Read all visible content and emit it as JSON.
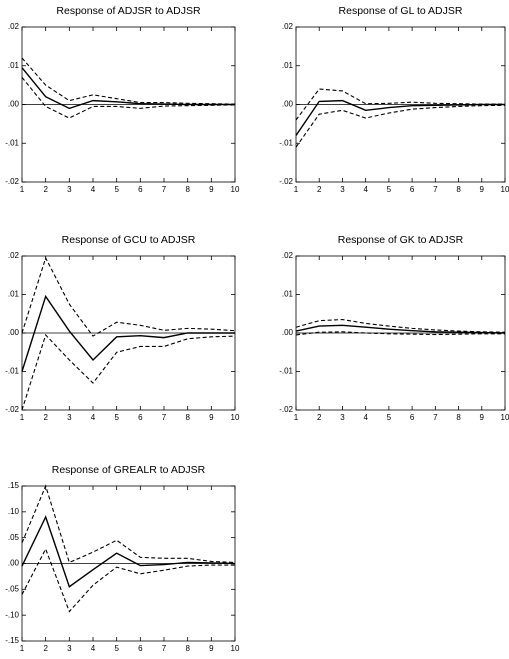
{
  "chart_data": [
    {
      "type": "line",
      "title": "Response of ADJSR to ADJSR",
      "x": [
        1,
        2,
        3,
        4,
        5,
        6,
        7,
        8,
        9,
        10
      ],
      "xlim": [
        1,
        10
      ],
      "xticks": [
        1,
        2,
        3,
        4,
        5,
        6,
        7,
        8,
        9,
        10
      ],
      "ylim": [
        -0.02,
        0.02
      ],
      "yticks": [
        {
          "value": -0.02,
          "label": "-.02"
        },
        {
          "value": -0.01,
          "label": "-.01"
        },
        {
          "value": 0,
          "label": ".00"
        },
        {
          "value": 0.01,
          "label": ".01"
        },
        {
          "value": 0.02,
          "label": ".02"
        }
      ],
      "zero_line": true,
      "series": [
        {
          "color": "#000000",
          "style": "solid",
          "values": [
            0.0095,
            0.002,
            -0.001,
            0.001,
            0.0007,
            0.0002,
            0.0001,
            0,
            0,
            0
          ]
        },
        {
          "color": "#000000",
          "style": "dashed",
          "values": [
            0.012,
            0.005,
            0.001,
            0.0025,
            0.0015,
            0.0005,
            0.0005,
            0.0003,
            0.0002,
            0.0001
          ]
        },
        {
          "color": "#000000",
          "style": "dashed",
          "values": [
            0.007,
            -0.0005,
            -0.0035,
            -0.0005,
            -0.0005,
            -0.001,
            -0.0004,
            -0.0003,
            -0.0002,
            -0.0001
          ]
        }
      ]
    },
    {
      "type": "line",
      "title": "Response of GL to ADJSR",
      "x": [
        1,
        2,
        3,
        4,
        5,
        6,
        7,
        8,
        9,
        10
      ],
      "xlim": [
        1,
        10
      ],
      "xticks": [
        1,
        2,
        3,
        4,
        5,
        6,
        7,
        8,
        9,
        10
      ],
      "ylim": [
        -0.02,
        0.02
      ],
      "yticks": [
        {
          "value": -0.02,
          "label": "-.02"
        },
        {
          "value": -0.01,
          "label": "-.01"
        },
        {
          "value": 0,
          "label": ".00"
        },
        {
          "value": 0.01,
          "label": ".01"
        },
        {
          "value": 0.02,
          "label": ".02"
        }
      ],
      "zero_line": true,
      "series": [
        {
          "color": "#000000",
          "style": "solid",
          "values": [
            -0.008,
            0.0008,
            0.001,
            -0.0015,
            -0.0008,
            -0.0003,
            -0.0002,
            -0.0001,
            0,
            0
          ]
        },
        {
          "color": "#000000",
          "style": "dashed",
          "values": [
            -0.004,
            0.004,
            0.0035,
            0.0002,
            0.0003,
            0.0006,
            0.0003,
            0.0002,
            0.0001,
            0.0001
          ]
        },
        {
          "color": "#000000",
          "style": "dashed",
          "values": [
            -0.011,
            -0.0025,
            -0.0015,
            -0.0035,
            -0.0022,
            -0.0012,
            -0.0008,
            -0.0005,
            -0.0003,
            -0.0002
          ]
        }
      ]
    },
    {
      "type": "line",
      "title": "Response of GCU to ADJSR",
      "x": [
        1,
        2,
        3,
        4,
        5,
        6,
        7,
        8,
        9,
        10
      ],
      "xlim": [
        1,
        10
      ],
      "xticks": [
        1,
        2,
        3,
        4,
        5,
        6,
        7,
        8,
        9,
        10
      ],
      "ylim": [
        -0.02,
        0.02
      ],
      "yticks": [
        {
          "value": -0.02,
          "label": "-.02"
        },
        {
          "value": -0.01,
          "label": "-.01"
        },
        {
          "value": 0,
          "label": ".00"
        },
        {
          "value": 0.01,
          "label": ".01"
        },
        {
          "value": 0.02,
          "label": ".02"
        }
      ],
      "zero_line": true,
      "series": [
        {
          "color": "#000000",
          "style": "solid",
          "values": [
            -0.01,
            0.0095,
            0.0005,
            -0.007,
            -0.001,
            -0.0007,
            -0.0012,
            0,
            0,
            0
          ]
        },
        {
          "color": "#000000",
          "style": "dashed",
          "values": [
            0,
            0.0195,
            0.0075,
            -0.0008,
            0.0028,
            0.002,
            0.0007,
            0.0012,
            0.001,
            0.0006
          ]
        },
        {
          "color": "#000000",
          "style": "dashed",
          "values": [
            -0.02,
            -0.0005,
            -0.007,
            -0.013,
            -0.005,
            -0.0035,
            -0.0035,
            -0.0015,
            -0.001,
            -0.0008
          ]
        }
      ]
    },
    {
      "type": "line",
      "title": "Response of GK to ADJSR",
      "x": [
        1,
        2,
        3,
        4,
        5,
        6,
        7,
        8,
        9,
        10
      ],
      "xlim": [
        1,
        10
      ],
      "xticks": [
        1,
        2,
        3,
        4,
        5,
        6,
        7,
        8,
        9,
        10
      ],
      "ylim": [
        -0.02,
        0.02
      ],
      "yticks": [
        {
          "value": -0.02,
          "label": "-.02"
        },
        {
          "value": -0.01,
          "label": "-.01"
        },
        {
          "value": 0,
          "label": ".00"
        },
        {
          "value": 0.01,
          "label": ".01"
        },
        {
          "value": 0.02,
          "label": ".02"
        }
      ],
      "zero_line": true,
      "series": [
        {
          "color": "#000000",
          "style": "solid",
          "values": [
            0.0005,
            0.0018,
            0.002,
            0.0015,
            0.001,
            0.0006,
            0.0003,
            0.0002,
            0.0001,
            0
          ]
        },
        {
          "color": "#000000",
          "style": "dashed",
          "values": [
            0.0015,
            0.0032,
            0.0035,
            0.0025,
            0.0018,
            0.0012,
            0.0008,
            0.0005,
            0.0003,
            0.0002
          ]
        },
        {
          "color": "#000000",
          "style": "dashed",
          "values": [
            -0.0005,
            0.0002,
            0.0003,
            0,
            -0.0002,
            -0.0003,
            -0.0004,
            -0.0003,
            -0.0002,
            -0.0002
          ]
        }
      ]
    },
    {
      "type": "line",
      "title": "Response of GREALR to ADJSR",
      "x": [
        1,
        2,
        3,
        4,
        5,
        6,
        7,
        8,
        9,
        10
      ],
      "xlim": [
        1,
        10
      ],
      "xticks": [
        1,
        2,
        3,
        4,
        5,
        6,
        7,
        8,
        9,
        10
      ],
      "ylim": [
        -0.15,
        0.15
      ],
      "yticks": [
        {
          "value": -0.15,
          "label": "-.15"
        },
        {
          "value": -0.1,
          "label": "-.10"
        },
        {
          "value": -0.05,
          "label": "-.05"
        },
        {
          "value": 0,
          "label": ".00"
        },
        {
          "value": 0.05,
          "label": ".05"
        },
        {
          "value": 0.1,
          "label": ".10"
        },
        {
          "value": 0.15,
          "label": ".15"
        }
      ],
      "zero_line": true,
      "series": [
        {
          "color": "#000000",
          "style": "solid",
          "values": [
            -0.005,
            0.09,
            -0.045,
            -0.012,
            0.02,
            -0.004,
            -0.002,
            0.002,
            0.001,
            0
          ]
        },
        {
          "color": "#000000",
          "style": "dashed",
          "values": [
            0.04,
            0.15,
            0.002,
            0.022,
            0.045,
            0.012,
            0.01,
            0.01,
            0.004,
            0.002
          ]
        },
        {
          "color": "#000000",
          "style": "dashed",
          "values": [
            -0.06,
            0.028,
            -0.093,
            -0.042,
            -0.007,
            -0.02,
            -0.013,
            -0.005,
            -0.003,
            -0.003
          ]
        }
      ]
    }
  ]
}
